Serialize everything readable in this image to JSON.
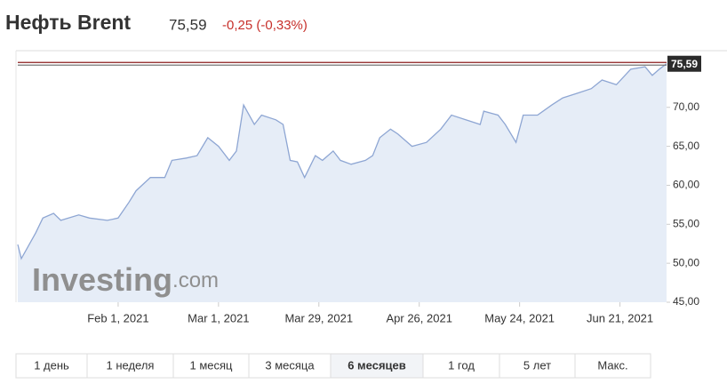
{
  "header": {
    "title": "Нефть Brent",
    "price": "75,59",
    "change": "-0,25 (-0,33%)"
  },
  "chart_data": {
    "type": "area",
    "color": "#8ea6d3",
    "fill": "#e6edf7",
    "x": [
      "2021-01-04",
      "2021-01-05",
      "2021-01-09",
      "2021-01-11",
      "2021-01-14",
      "2021-01-16",
      "2021-01-21",
      "2021-01-24",
      "2021-01-29",
      "2021-02-01",
      "2021-02-04",
      "2021-02-06",
      "2021-02-10",
      "2021-02-14",
      "2021-02-16",
      "2021-02-20",
      "2021-02-23",
      "2021-02-26",
      "2021-03-01",
      "2021-03-04",
      "2021-03-06",
      "2021-03-08",
      "2021-03-11",
      "2021-03-13",
      "2021-03-17",
      "2021-03-19",
      "2021-03-21",
      "2021-03-23",
      "2021-03-25",
      "2021-03-28",
      "2021-03-30",
      "2021-04-02",
      "2021-04-04",
      "2021-04-07",
      "2021-04-11",
      "2021-04-13",
      "2021-04-15",
      "2021-04-18",
      "2021-04-20",
      "2021-04-24",
      "2021-04-28",
      "2021-05-02",
      "2021-05-05",
      "2021-05-09",
      "2021-05-13",
      "2021-05-14",
      "2021-05-18",
      "2021-05-20",
      "2021-05-23",
      "2021-05-25",
      "2021-05-29",
      "2021-06-02",
      "2021-06-05",
      "2021-06-09",
      "2021-06-13",
      "2021-06-16",
      "2021-06-20",
      "2021-06-24",
      "2021-06-28",
      "2021-06-30",
      "2021-07-02",
      "2021-07-04"
    ],
    "values": [
      52.4,
      50.6,
      53.9,
      55.8,
      56.4,
      55.5,
      56.2,
      55.8,
      55.5,
      55.8,
      57.8,
      59.3,
      61.0,
      61.0,
      63.2,
      63.5,
      63.8,
      66.1,
      65.0,
      63.2,
      64.4,
      70.3,
      67.8,
      69.0,
      68.4,
      67.8,
      63.2,
      63.0,
      61.0,
      63.8,
      63.2,
      64.4,
      63.2,
      62.7,
      63.2,
      63.8,
      66.1,
      67.2,
      66.6,
      65.0,
      65.5,
      67.2,
      69.0,
      68.4,
      67.8,
      69.5,
      69.0,
      67.8,
      65.5,
      69.0,
      69.0,
      70.3,
      71.2,
      71.8,
      72.4,
      73.5,
      72.9,
      74.9,
      75.2,
      74.1,
      74.9,
      75.59
    ],
    "xlim": [
      "2021-01-04",
      "2021-07-04"
    ],
    "xticks": [
      {
        "value": "2021-02-01",
        "label": "Feb 1, 2021"
      },
      {
        "value": "2021-03-01",
        "label": "Mar 1, 2021"
      },
      {
        "value": "2021-03-29",
        "label": "Mar 29, 2021"
      },
      {
        "value": "2021-04-26",
        "label": "Apr 26, 2021"
      },
      {
        "value": "2021-05-24",
        "label": "May 24, 2021"
      },
      {
        "value": "2021-06-21",
        "label": "Jun 21, 2021"
      }
    ],
    "ylim": [
      45,
      77.2
    ],
    "yticks": [
      {
        "value": 45,
        "label": "45,00"
      },
      {
        "value": 50,
        "label": "50,00"
      },
      {
        "value": 55,
        "label": "55,00"
      },
      {
        "value": 60,
        "label": "60,00"
      },
      {
        "value": 65,
        "label": "65,00"
      },
      {
        "value": 70,
        "label": "70,00"
      }
    ],
    "last_price": {
      "value": 75.59,
      "label": "75,59"
    },
    "watermark": [
      "Investing",
      ".com"
    ]
  },
  "ranges": [
    "1 день",
    "1 неделя",
    "1 месяц",
    "3 месяца",
    "6 месяцев",
    "1 год",
    "5 лет",
    "Макс."
  ],
  "active_range": 4
}
